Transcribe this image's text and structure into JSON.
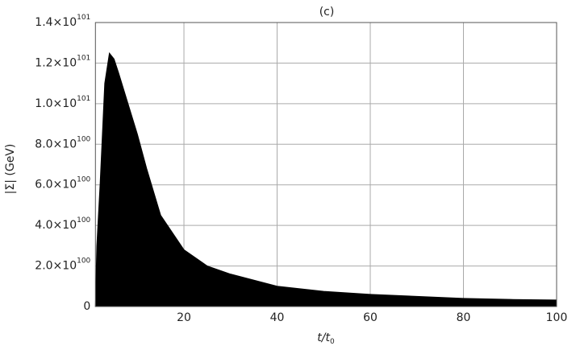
{
  "chart_data": {
    "type": "area",
    "title": "(c)",
    "x_label": "t/t",
    "x_label_subscript": "0",
    "y_label": "|Σ| (GeV)",
    "x": [
      1,
      1.3,
      2,
      3,
      4,
      5,
      6,
      8,
      10,
      12,
      15,
      20,
      25,
      30,
      40,
      50,
      60,
      70,
      80,
      90,
      100
    ],
    "series": [
      {
        "color": "#000000",
        "values": [
          0,
          3e+100,
          6e+100,
          1.1e+101,
          1.249e+101,
          1.22e+101,
          1.15e+101,
          1e+101,
          8.5e+100,
          6.8e+100,
          4.5e+100,
          2.8e+100,
          2e+100,
          1.6e+100,
          1e+100,
          7.5e+99,
          6e+99,
          5e+99,
          4e+99,
          3.5e+99,
          3.2e+99
        ]
      }
    ],
    "xlim": [
      1,
      100
    ],
    "ylim": [
      0,
      1.4e+101
    ],
    "xticks": [
      20,
      40,
      60,
      80,
      100
    ],
    "yticks": [
      0,
      {
        "value": 2e+100,
        "label": "2.0×10",
        "exponent": "100"
      },
      {
        "value": 4e+100,
        "label": "4.0×10",
        "exponent": "100"
      },
      {
        "value": 6e+100,
        "label": "6.0×10",
        "exponent": "100"
      },
      {
        "value": 8e+100,
        "label": "8.0×10",
        "exponent": "100"
      },
      {
        "value": 1e+101,
        "label": "1.0×10",
        "exponent": "101"
      },
      {
        "value": 1.2e+101,
        "label": "1.2×10",
        "exponent": "101"
      },
      {
        "value": 1.4e+101,
        "label": "1.4×10",
        "exponent": "101"
      }
    ],
    "grid": true
  }
}
